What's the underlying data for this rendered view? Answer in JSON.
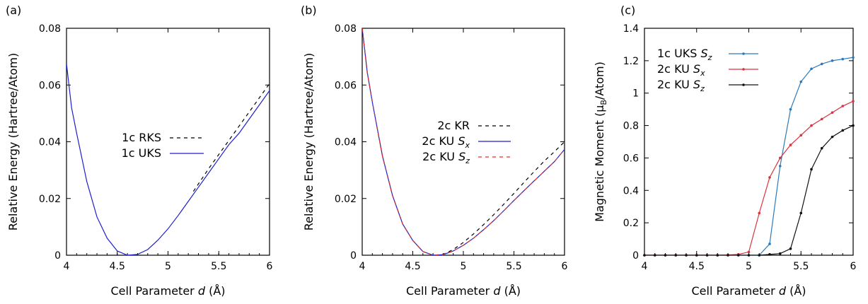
{
  "chart_data": [
    {
      "type": "line",
      "panel_label": "(a)",
      "xlabel": "Cell Parameter d (Å)",
      "xlabel_parts": [
        "Cell Parameter ",
        "d",
        " (Å)"
      ],
      "ylabel": "Relative Energy (Hartree/Atom)",
      "xlim": [
        4,
        6
      ],
      "ylim": [
        0,
        0.08
      ],
      "x_ticks": [
        4,
        4.5,
        5,
        5.5,
        6
      ],
      "x_tick_labels": [
        "4",
        "4.5",
        "5",
        "5.5",
        "6"
      ],
      "y_ticks": [
        0,
        0.02,
        0.04,
        0.06,
        0.08
      ],
      "y_tick_labels": [
        "0",
        "0.02",
        "0.04",
        "0.06",
        "0.08"
      ],
      "legend_position": "center",
      "series": [
        {
          "name": "1c RKS",
          "color": "#000000",
          "dash": true,
          "x": [
            5.25,
            5.4,
            5.6,
            5.8,
            6.0
          ],
          "y": [
            0.0225,
            0.0305,
            0.0405,
            0.0505,
            0.0605
          ]
        },
        {
          "name": "1c UKS",
          "color": "#1f1fd0",
          "dash": false,
          "x": [
            4.0,
            4.05,
            4.1,
            4.2,
            4.3,
            4.4,
            4.5,
            4.6,
            4.7,
            4.8,
            4.9,
            5.0,
            5.1,
            5.2,
            5.3,
            5.4,
            5.5,
            5.6,
            5.7,
            5.8,
            5.9,
            6.0
          ],
          "y": [
            0.0675,
            0.052,
            0.043,
            0.026,
            0.0135,
            0.006,
            0.0015,
            0.0,
            0.0003,
            0.002,
            0.0053,
            0.0093,
            0.014,
            0.019,
            0.024,
            0.029,
            0.034,
            0.039,
            0.043,
            0.048,
            0.053,
            0.058
          ]
        }
      ]
    },
    {
      "type": "line",
      "panel_label": "(b)",
      "xlabel": "Cell Parameter d (Å)",
      "xlabel_parts": [
        "Cell Parameter ",
        "d",
        " (Å)"
      ],
      "ylabel": "Relative Energy (Hartree/Atom)",
      "xlim": [
        4,
        6
      ],
      "ylim": [
        0,
        0.08
      ],
      "x_ticks": [
        4,
        4.5,
        5,
        5.5,
        6
      ],
      "x_tick_labels": [
        "4",
        "4.5",
        "5",
        "5.5",
        "6"
      ],
      "y_ticks": [
        0,
        0.02,
        0.04,
        0.06,
        0.08
      ],
      "y_tick_labels": [
        "0",
        "0.02",
        "0.04",
        "0.06",
        "0.08"
      ],
      "legend_position": "center",
      "series": [
        {
          "name": "2c KR",
          "legend_parts": [
            "2c KR",
            ""
          ],
          "color": "#000000",
          "dash": true,
          "x": [
            4.0,
            4.05,
            4.1,
            4.2,
            4.3,
            4.4,
            4.5,
            4.6,
            4.7,
            4.8,
            4.9,
            5.0,
            5.1,
            5.2,
            5.3,
            5.4,
            5.5,
            5.6,
            5.7,
            5.8,
            5.9,
            6.0
          ],
          "y": [
            0.08,
            0.0645,
            0.054,
            0.035,
            0.021,
            0.011,
            0.0052,
            0.0013,
            0.0,
            0.0003,
            0.002,
            0.0045,
            0.0075,
            0.0108,
            0.0143,
            0.018,
            0.0218,
            0.0257,
            0.0295,
            0.0332,
            0.0365,
            0.04
          ]
        },
        {
          "name": "2c KU Sx",
          "legend_parts": [
            "2c KU ",
            "S",
            "x"
          ],
          "color": "#1f1fd0",
          "dash": false,
          "x": [
            4.0,
            4.05,
            4.1,
            4.2,
            4.3,
            4.4,
            4.5,
            4.6,
            4.7,
            4.8,
            4.9,
            5.0,
            5.1,
            5.2,
            5.3,
            5.4,
            5.5,
            5.6,
            5.7,
            5.8,
            5.9,
            6.0
          ],
          "y": [
            0.08,
            0.0645,
            0.054,
            0.035,
            0.021,
            0.011,
            0.0052,
            0.0013,
            0.0,
            0.0002,
            0.0015,
            0.0035,
            0.006,
            0.009,
            0.0122,
            0.0157,
            0.0193,
            0.0228,
            0.0262,
            0.0296,
            0.033,
            0.0373
          ]
        },
        {
          "name": "2c KU Sz",
          "legend_parts": [
            "2c KU ",
            "S",
            "z"
          ],
          "color": "#e03030",
          "dash": true,
          "x": [
            4.0,
            4.05,
            4.1,
            4.2,
            4.3,
            4.4,
            4.5,
            4.6,
            4.7,
            4.8,
            4.9,
            5.0,
            5.1,
            5.2,
            5.3,
            5.4,
            5.5,
            5.6,
            5.7,
            5.8,
            5.9,
            6.0
          ],
          "y": [
            0.08,
            0.0645,
            0.054,
            0.035,
            0.021,
            0.011,
            0.0052,
            0.0013,
            0.0,
            0.0002,
            0.0015,
            0.0035,
            0.006,
            0.009,
            0.0122,
            0.0157,
            0.0193,
            0.0228,
            0.0262,
            0.0296,
            0.033,
            0.0373
          ]
        }
      ]
    },
    {
      "type": "line",
      "panel_label": "(c)",
      "xlabel": "Cell Parameter d (Å)",
      "xlabel_parts": [
        "Cell Parameter ",
        "d",
        " (Å)"
      ],
      "ylabel": "Magnetic Moment (μB/Atom)",
      "ylabel_parts": [
        "Magnetic Moment (μ",
        "B",
        "/Atom)"
      ],
      "xlim": [
        4,
        6
      ],
      "ylim": [
        0,
        1.4
      ],
      "x_ticks": [
        4,
        4.5,
        5,
        5.5,
        6
      ],
      "x_tick_labels": [
        "4",
        "4.5",
        "5",
        "5.5",
        "6"
      ],
      "y_ticks": [
        0,
        0.2,
        0.4,
        0.6,
        0.8,
        1.0,
        1.2,
        1.4
      ],
      "y_tick_labels": [
        "0",
        "0.2",
        "0.4",
        "0.6",
        "0.8",
        "1",
        "1.2",
        "1.4"
      ],
      "legend_position": "top-left",
      "markers": true,
      "series": [
        {
          "name": "1c UKS Sz",
          "legend_parts": [
            "1c UKS ",
            "S",
            "z"
          ],
          "color": "#2e7ab8",
          "dash": false,
          "x": [
            4.0,
            4.1,
            4.2,
            4.3,
            4.4,
            4.5,
            4.6,
            4.7,
            4.8,
            4.9,
            5.0,
            5.1,
            5.2,
            5.3,
            5.4,
            5.5,
            5.6,
            5.7,
            5.8,
            5.9,
            6.0
          ],
          "y": [
            0,
            0,
            0,
            0,
            0,
            0,
            0,
            0,
            0,
            0,
            0,
            0.0,
            0.07,
            0.55,
            0.9,
            1.07,
            1.15,
            1.18,
            1.2,
            1.21,
            1.22
          ]
        },
        {
          "name": "2c KU Sx",
          "legend_parts": [
            "2c KU ",
            "S",
            "x"
          ],
          "color": "#d9333f",
          "dash": false,
          "x": [
            4.0,
            4.1,
            4.2,
            4.3,
            4.4,
            4.5,
            4.6,
            4.7,
            4.8,
            4.9,
            5.0,
            5.1,
            5.2,
            5.3,
            5.4,
            5.5,
            5.6,
            5.7,
            5.8,
            5.9,
            6.0
          ],
          "y": [
            0,
            0,
            0,
            0,
            0,
            0,
            0,
            0,
            0.002,
            0.005,
            0.02,
            0.26,
            0.48,
            0.6,
            0.68,
            0.74,
            0.8,
            0.84,
            0.88,
            0.92,
            0.95
          ]
        },
        {
          "name": "2c KU Sz",
          "legend_parts": [
            "2c KU ",
            "S",
            "z"
          ],
          "color": "#111111",
          "dash": false,
          "x": [
            4.0,
            4.1,
            4.2,
            4.3,
            4.4,
            4.5,
            4.6,
            4.7,
            4.8,
            4.9,
            5.0,
            5.1,
            5.2,
            5.3,
            5.4,
            5.5,
            5.6,
            5.7,
            5.8,
            5.9,
            6.0
          ],
          "y": [
            0,
            0,
            0,
            0,
            0,
            0,
            0,
            0,
            0,
            0,
            0,
            0,
            0.005,
            0.01,
            0.04,
            0.26,
            0.53,
            0.66,
            0.73,
            0.77,
            0.8
          ]
        }
      ]
    }
  ]
}
